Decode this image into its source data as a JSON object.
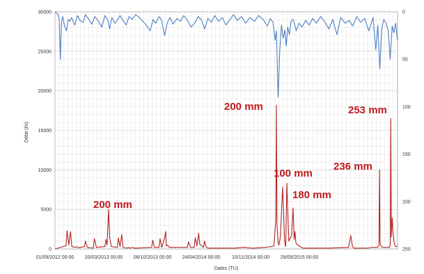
{
  "chart_data": {
    "type": "line",
    "xlabel": "Dates (TU)",
    "ylabel": "Débit (l/s)",
    "x_ticks": [
      "01/09/2012 00:00",
      "20/03/2013 00:00",
      "06/10/2013 00:00",
      "24/04/2014 00:00",
      "10/11/2014 00:00",
      "29/05/2015 00:00"
    ],
    "xlim": [
      "2012-09-01",
      "2015-12-31"
    ],
    "ylim": [
      0,
      30000
    ],
    "y_ticks": [
      "0",
      "5000",
      "10000",
      "15000",
      "20000",
      "25000",
      "30000"
    ],
    "y2lim": [
      0,
      250
    ],
    "y2_inverted": true,
    "y2_ticks": [
      "0",
      "50",
      "100",
      "150",
      "200",
      "250"
    ],
    "grid": true,
    "series": [
      {
        "axis": "left",
        "color": "#b22222",
        "x": [
          "2012-09-01",
          "2012-09-20",
          "2012-10-10",
          "2012-10-14",
          "2012-10-20",
          "2012-10-26",
          "2012-10-31",
          "2012-11-12",
          "2012-11-16",
          "2012-11-22",
          "2012-12-15",
          "2012-12-18",
          "2012-12-25",
          "2013-01-15",
          "2013-01-19",
          "2013-01-26",
          "2013-02-25",
          "2013-03-01",
          "2013-03-05",
          "2013-03-10",
          "2013-03-14",
          "2013-03-20",
          "2013-04-10",
          "2013-04-14",
          "2013-04-20",
          "2013-04-26",
          "2013-05-01",
          "2013-05-15",
          "2013-05-19",
          "2013-05-25",
          "2013-06-05",
          "2013-06-08",
          "2013-06-15",
          "2013-08-10",
          "2013-08-14",
          "2013-08-20",
          "2013-09-05",
          "2013-09-09",
          "2013-09-15",
          "2013-09-25",
          "2013-09-29",
          "2013-10-01",
          "2013-10-05",
          "2013-10-12",
          "2013-12-15",
          "2013-12-19",
          "2013-12-26",
          "2014-01-08",
          "2014-01-12",
          "2014-01-18",
          "2014-01-24",
          "2014-01-28",
          "2014-02-10",
          "2014-02-14",
          "2014-02-20",
          "2014-03-01",
          "2014-04-05",
          "2014-06-01",
          "2014-07-05",
          "2014-08-01",
          "2014-08-10",
          "2014-09-15",
          "2014-10-10",
          "2014-10-18",
          "2014-10-25",
          "2014-10-27",
          "2014-10-29",
          "2014-11-02",
          "2014-11-05",
          "2014-11-10",
          "2014-11-18",
          "2014-11-25",
          "2014-11-27",
          "2014-11-29",
          "2014-12-03",
          "2014-12-10",
          "2014-12-20",
          "2014-12-25",
          "2014-12-29",
          "2015-01-01",
          "2015-01-04",
          "2015-01-10",
          "2015-01-16",
          "2015-01-20",
          "2015-01-23",
          "2015-01-27",
          "2015-02-01",
          "2015-02-10",
          "2015-03-15",
          "2015-05-01",
          "2015-07-10",
          "2015-07-18",
          "2015-07-24",
          "2015-07-30",
          "2015-09-15",
          "2015-10-01",
          "2015-10-20",
          "2015-10-26",
          "2015-10-28",
          "2015-10-30",
          "2015-11-03",
          "2015-11-10",
          "2015-11-25",
          "2015-12-02",
          "2015-12-05",
          "2015-12-07",
          "2015-12-09",
          "2015-12-12",
          "2015-12-15",
          "2015-12-20",
          "2015-12-25",
          "2015-12-31"
        ],
        "values": [
          0,
          200,
          400,
          2300,
          500,
          2200,
          300,
          200,
          300,
          150,
          300,
          1000,
          200,
          100,
          1300,
          200,
          300,
          1200,
          500,
          5000,
          1500,
          300,
          200,
          1400,
          300,
          1800,
          200,
          100,
          200,
          100,
          200,
          100,
          100,
          200,
          1100,
          200,
          200,
          1300,
          200,
          1400,
          2200,
          400,
          500,
          200,
          200,
          900,
          200,
          200,
          1400,
          400,
          2000,
          600,
          200,
          1000,
          200,
          100,
          100,
          100,
          200,
          100,
          100,
          200,
          300,
          400,
          3700,
          18200,
          3000,
          700,
          500,
          1500,
          7800,
          1000,
          600,
          300,
          8300,
          1000,
          1700,
          5200,
          1200,
          2200,
          800,
          500,
          400,
          300,
          200,
          150,
          100,
          100,
          100,
          100,
          200,
          1700,
          300,
          100,
          100,
          200,
          200,
          400,
          10000,
          800,
          300,
          200,
          200,
          200,
          500,
          16500,
          1500,
          3900,
          2000,
          600,
          300,
          300
        ]
      },
      {
        "axis": "right",
        "color": "#4a7fc4",
        "x": [
          "2012-09-01",
          "2012-09-12",
          "2012-09-16",
          "2012-09-20",
          "2012-09-24",
          "2012-09-28",
          "2012-10-05",
          "2012-10-12",
          "2012-10-18",
          "2012-10-24",
          "2012-10-30",
          "2012-11-10",
          "2012-11-20",
          "2012-11-28",
          "2012-12-10",
          "2012-12-18",
          "2012-12-28",
          "2013-01-10",
          "2013-01-20",
          "2013-02-02",
          "2013-02-14",
          "2013-02-25",
          "2013-03-08",
          "2013-03-14",
          "2013-03-22",
          "2013-04-02",
          "2013-04-12",
          "2013-04-20",
          "2013-05-02",
          "2013-05-12",
          "2013-05-22",
          "2013-06-02",
          "2013-06-14",
          "2013-06-28",
          "2013-07-10",
          "2013-07-22",
          "2013-08-05",
          "2013-08-15",
          "2013-08-25",
          "2013-09-05",
          "2013-09-15",
          "2013-09-25",
          "2013-10-05",
          "2013-10-15",
          "2013-10-25",
          "2013-11-08",
          "2013-11-20",
          "2013-12-02",
          "2013-12-15",
          "2013-12-28",
          "2014-01-10",
          "2014-01-22",
          "2014-02-02",
          "2014-02-14",
          "2014-02-26",
          "2014-03-10",
          "2014-03-22",
          "2014-04-05",
          "2014-04-18",
          "2014-05-01",
          "2014-05-15",
          "2014-05-28",
          "2014-06-10",
          "2014-06-25",
          "2014-07-10",
          "2014-07-25",
          "2014-08-10",
          "2014-08-25",
          "2014-09-10",
          "2014-09-25",
          "2014-10-05",
          "2014-10-15",
          "2014-10-22",
          "2014-10-27",
          "2014-11-02",
          "2014-11-08",
          "2014-11-14",
          "2014-11-20",
          "2014-11-26",
          "2014-12-01",
          "2014-12-06",
          "2014-12-12",
          "2014-12-18",
          "2014-12-26",
          "2015-01-05",
          "2015-01-15",
          "2015-01-26",
          "2015-02-08",
          "2015-02-20",
          "2015-03-05",
          "2015-03-18",
          "2015-04-02",
          "2015-04-16",
          "2015-05-01",
          "2015-05-15",
          "2015-05-30",
          "2015-06-12",
          "2015-06-28",
          "2015-07-12",
          "2015-07-25",
          "2015-08-08",
          "2015-08-22",
          "2015-09-05",
          "2015-09-20",
          "2015-10-05",
          "2015-10-15",
          "2015-10-22",
          "2015-10-29",
          "2015-11-05",
          "2015-11-12",
          "2015-11-20",
          "2015-11-28",
          "2015-12-05",
          "2015-12-12",
          "2015-12-18",
          "2015-12-24",
          "2015-12-31"
        ],
        "values": [
          0,
          3,
          8,
          50,
          12,
          5,
          15,
          20,
          8,
          10,
          6,
          14,
          4,
          9,
          11,
          3,
          7,
          13,
          5,
          10,
          16,
          4,
          9,
          18,
          6,
          12,
          8,
          4,
          10,
          14,
          5,
          8,
          3,
          6,
          10,
          14,
          20,
          8,
          12,
          5,
          9,
          25,
          11,
          6,
          13,
          7,
          10,
          4,
          9,
          16,
          12,
          5,
          8,
          18,
          7,
          11,
          4,
          10,
          6,
          14,
          8,
          3,
          9,
          5,
          12,
          6,
          10,
          4,
          8,
          15,
          7,
          11,
          30,
          20,
          90,
          40,
          14,
          28,
          19,
          36,
          16,
          24,
          10,
          8,
          20,
          12,
          16,
          9,
          14,
          7,
          12,
          5,
          10,
          18,
          8,
          24,
          6,
          12,
          9,
          15,
          5,
          11,
          7,
          20,
          6,
          40,
          14,
          60,
          18,
          8,
          12,
          20,
          50,
          15,
          22,
          12,
          30
        ]
      }
    ],
    "annotations": [
      {
        "text": "200 mm"
      },
      {
        "text": "200 mm"
      },
      {
        "text": "100 mm"
      },
      {
        "text": "180 mm"
      },
      {
        "text": "236 mm"
      },
      {
        "text": "253 mm"
      }
    ]
  }
}
